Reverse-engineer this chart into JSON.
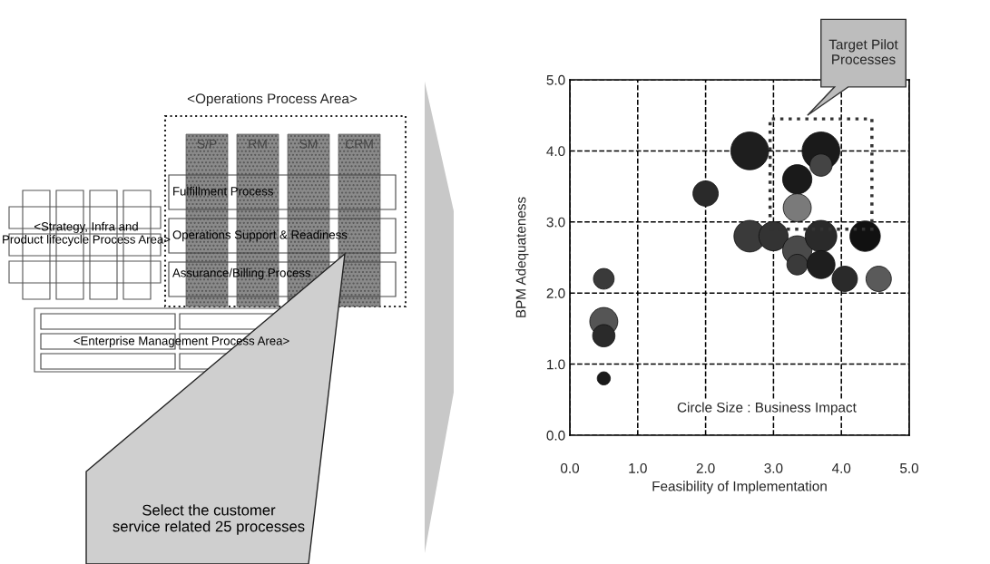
{
  "chart_data": [
    {
      "type": "other",
      "title": "<Operations Process Area>",
      "categories": [
        "S/P",
        "RM",
        "SM",
        "CRM"
      ],
      "annotations": [
        "<Strategy, Infra and Product lifecycle Process Area>",
        "Fulfillment Process",
        "Operations Support & Readiness",
        "Assurance/Billing Process",
        "<Enterprise Management Process Area>",
        "Select the customer service related 25 processes"
      ]
    },
    {
      "type": "bubble",
      "xlabel": "Feasibility of Implementation",
      "ylabel": "BPM Adequateness",
      "x": [
        0.5,
        0.5,
        0.5,
        0.5,
        2.0,
        2.65,
        2.65,
        3.0,
        3.35,
        3.35,
        3.35,
        3.35,
        3.7,
        3.7,
        3.7,
        3.7,
        4.05,
        4.35,
        4.55
      ],
      "values": [
        2.2,
        1.6,
        1.4,
        0.8,
        3.4,
        4.0,
        2.8,
        2.8,
        3.6,
        3.2,
        2.6,
        2.4,
        4.0,
        3.8,
        2.8,
        2.4,
        2.2,
        2.8,
        2.2
      ],
      "sizes": [
        0.3,
        0.55,
        0.35,
        0.12,
        0.45,
        1.0,
        0.7,
        0.6,
        0.6,
        0.55,
        0.6,
        0.3,
        1.0,
        0.35,
        0.7,
        0.55,
        0.45,
        0.65,
        0.45
      ],
      "colors": [
        "#3a3a3a",
        "#555555",
        "#2a2a2a",
        "#1a1a1a",
        "#2a2a2a",
        "#1e1e1e",
        "#3a3a3a",
        "#333333",
        "#1a1a1a",
        "#7a7a7a",
        "#4a4a4a",
        "#3a3a3a",
        "#1a1a1a",
        "#444444",
        "#2a2a2a",
        "#1e1e1e",
        "#2a2a2a",
        "#111111",
        "#5a5a5a"
      ],
      "xlim": [
        0,
        5
      ],
      "ylim": [
        0,
        5
      ],
      "xticks": [
        {
          "value": 0,
          "label": "0.0"
        },
        {
          "value": 1,
          "label": "1.0"
        },
        {
          "value": 2,
          "label": "2.0"
        },
        {
          "value": 3,
          "label": "3.0"
        },
        {
          "value": 4,
          "label": "4.0"
        },
        {
          "value": 5,
          "label": "5.0"
        }
      ],
      "yticks": [
        {
          "value": 0,
          "label": "0.0"
        },
        {
          "value": 1,
          "label": "1.0"
        },
        {
          "value": 2,
          "label": "2.0"
        },
        {
          "value": 3,
          "label": "3.0"
        },
        {
          "value": 4,
          "label": "4.0"
        },
        {
          "value": 5,
          "label": "5.0"
        }
      ],
      "grid": true,
      "relative": false,
      "annotations": [
        "Circle Size : Business Impact",
        "Target Pilot Processes"
      ]
    }
  ]
}
